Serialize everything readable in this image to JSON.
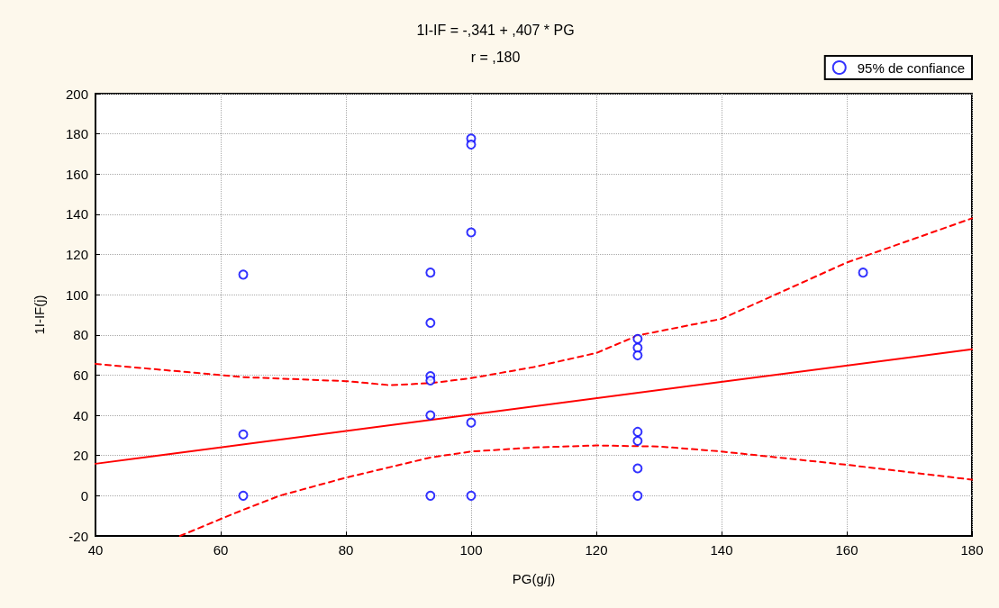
{
  "chart_data": {
    "type": "scatter",
    "title": "1I-IF = -,341 + ,407 * PG",
    "subtitle": "r = ,180",
    "xlabel": "PG(g/j)",
    "ylabel": "1I-IF(j)",
    "xlim": [
      40,
      180
    ],
    "xticks": [
      40,
      60,
      80,
      100,
      120,
      140,
      160,
      180
    ],
    "ylim": [
      -20,
      200
    ],
    "yticks": [
      -20,
      0,
      20,
      40,
      60,
      80,
      100,
      120,
      140,
      160,
      180,
      200
    ],
    "grid": true,
    "legend": "top right",
    "marker": "circle",
    "series": [
      {
        "name": "95% de confiance",
        "color": "#0000ff",
        "x": [
          63.6,
          63.6,
          63.6,
          93.5,
          93.5,
          93.5,
          93.5,
          93.5,
          93.5,
          100,
          100,
          100,
          100,
          100,
          126.6,
          126.6,
          126.6,
          126.6,
          126.6,
          126.6,
          126.6,
          162.6
        ],
        "values": [
          110,
          30.5,
          0,
          111,
          86,
          59.5,
          57.3,
          40,
          0,
          177.7,
          174.7,
          131,
          36.4,
          0,
          78,
          73.6,
          69.8,
          31.8,
          27.3,
          13.6,
          0,
          111
        ]
      },
      {
        "type": "line",
        "color": "#ff0000",
        "line_style": "solid",
        "marker": "none",
        "x": [
          40,
          180
        ],
        "values": [
          15.9,
          72.9
        ]
      },
      {
        "type": "line",
        "color": "#ff0000",
        "line_style": "dashed",
        "marker": "none",
        "x": [
          40,
          63.6,
          80,
          87,
          93.5,
          100,
          110,
          120,
          126.6,
          140,
          160,
          180
        ],
        "values": [
          65.6,
          59,
          57,
          55,
          56,
          58.5,
          64,
          71,
          79.7,
          88,
          116,
          138
        ]
      },
      {
        "type": "line",
        "color": "#ff0000",
        "line_style": "dashed",
        "marker": "none",
        "x": [
          53.5,
          62.3,
          69.4,
          80,
          93.5,
          100,
          110,
          120,
          130,
          140,
          160,
          180
        ],
        "values": [
          -20,
          -8.6,
          0,
          9,
          19,
          22,
          24,
          25,
          24.5,
          22,
          15.4,
          8
        ]
      }
    ]
  }
}
